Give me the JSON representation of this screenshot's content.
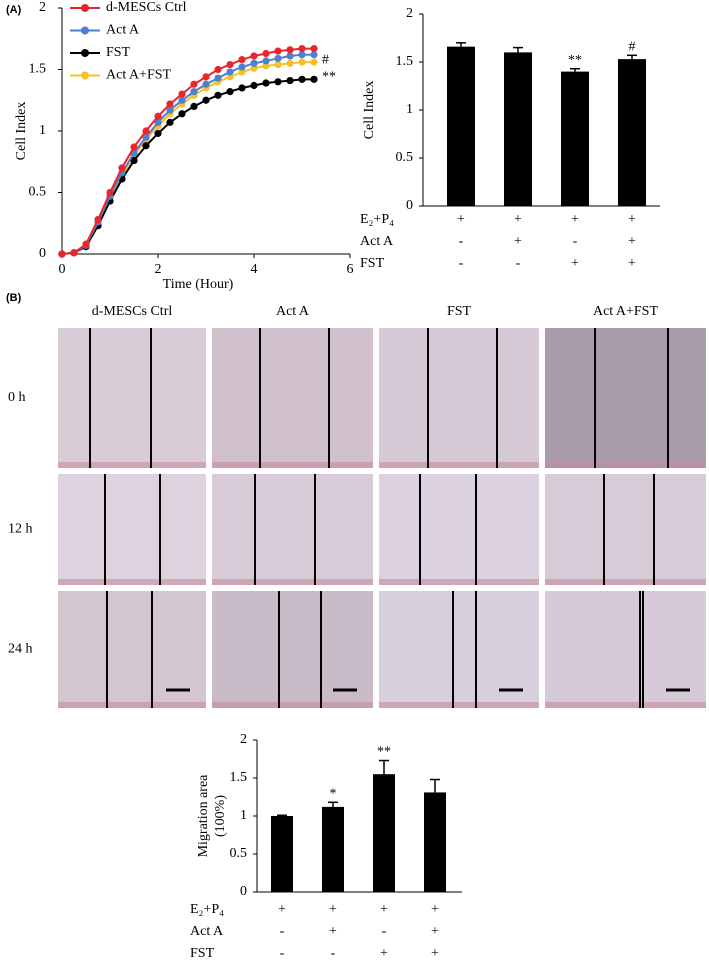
{
  "panel_labels": [
    "(A)",
    "(B)"
  ],
  "chart_data": [
    {
      "type": "line",
      "xlabel": "Time (Hour)",
      "ylabel": "Cell Index",
      "x": [
        0,
        0.25,
        0.5,
        0.75,
        1,
        1.25,
        1.5,
        1.75,
        2,
        2.25,
        2.5,
        2.75,
        3,
        3.25,
        3.5,
        3.75,
        4,
        4.25,
        4.5,
        4.75,
        5,
        5.25
      ],
      "xlim": [
        0,
        6
      ],
      "xticks": [
        0,
        2,
        4,
        6
      ],
      "ylim": [
        0,
        2
      ],
      "yticks": [
        0,
        0.5,
        1,
        1.5,
        2
      ],
      "legend": "top-left",
      "series": [
        {
          "name": "d-MESCs Ctrl",
          "color": "#e8262b",
          "values": [
            0,
            0.01,
            0.08,
            0.28,
            0.5,
            0.7,
            0.87,
            1.0,
            1.12,
            1.22,
            1.3,
            1.38,
            1.44,
            1.5,
            1.54,
            1.58,
            1.61,
            1.63,
            1.65,
            1.66,
            1.67,
            1.67
          ]
        },
        {
          "name": "Act A",
          "color": "#4f7fcf",
          "values": [
            0,
            0.01,
            0.07,
            0.26,
            0.47,
            0.66,
            0.82,
            0.95,
            1.07,
            1.17,
            1.25,
            1.32,
            1.38,
            1.43,
            1.48,
            1.52,
            1.55,
            1.57,
            1.59,
            1.61,
            1.62,
            1.62
          ]
        },
        {
          "name": "FST",
          "color": "#000000",
          "annotation": "**",
          "values": [
            0,
            0.01,
            0.06,
            0.23,
            0.43,
            0.61,
            0.76,
            0.88,
            0.98,
            1.07,
            1.14,
            1.2,
            1.25,
            1.29,
            1.32,
            1.35,
            1.37,
            1.39,
            1.4,
            1.41,
            1.42,
            1.42
          ]
        },
        {
          "name": "Act A+FST",
          "color": "#f7c02a",
          "annotation": "#",
          "values": [
            0,
            0.01,
            0.07,
            0.25,
            0.46,
            0.64,
            0.8,
            0.93,
            1.04,
            1.14,
            1.22,
            1.29,
            1.35,
            1.4,
            1.44,
            1.48,
            1.51,
            1.53,
            1.54,
            1.55,
            1.56,
            1.56
          ]
        }
      ]
    },
    {
      "type": "bar",
      "ylabel": [
        "Cell Index"
      ],
      "color": "#000000",
      "values": [
        1.66,
        1.6,
        1.4,
        1.53
      ],
      "errors": [
        0.04,
        0.05,
        0.03,
        0.04
      ],
      "annotations": [
        null,
        null,
        "**",
        "#"
      ],
      "ylim": [
        0,
        2
      ],
      "yticks": [
        0,
        0.5,
        1,
        1.5,
        2
      ],
      "conditions": [
        {
          "label": "E₂+P₄",
          "marks": [
            "+",
            "+",
            "+",
            "+"
          ]
        },
        {
          "label": "Act A",
          "marks": [
            "-",
            "+",
            "-",
            "+"
          ]
        },
        {
          "label": "FST",
          "marks": [
            "-",
            "-",
            "+",
            "+"
          ]
        }
      ]
    },
    {
      "type": "bar",
      "ylabel": [
        "Migration area",
        "(100%)"
      ],
      "color": "#000000",
      "values": [
        1.0,
        1.12,
        1.55,
        1.31
      ],
      "errors": [
        0.01,
        0.06,
        0.18,
        0.17
      ],
      "annotations": [
        null,
        "*",
        "**",
        null
      ],
      "ylim": [
        0,
        2
      ],
      "yticks": [
        0,
        0.5,
        1,
        1.5,
        2
      ],
      "conditions": [
        {
          "label": "E₂+P₄",
          "marks": [
            "+",
            "+",
            "+",
            "+"
          ]
        },
        {
          "label": "Act A",
          "marks": [
            "-",
            "+",
            "-",
            "+"
          ]
        },
        {
          "label": "FST",
          "marks": [
            "-",
            "-",
            "+",
            "+"
          ]
        }
      ]
    }
  ],
  "micrographs": {
    "columns": [
      "d-MESCs Ctrl",
      "Act A",
      "FST",
      "Act A+FST"
    ],
    "rows": [
      "0 h",
      "12 h",
      "24 h"
    ]
  }
}
